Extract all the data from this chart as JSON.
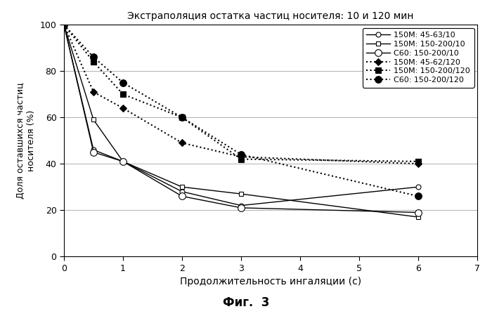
{
  "title": "Экстраполяция остатка частиц носителя: 10 и 120 мин",
  "xlabel": "Продолжительность ингаляции (с)",
  "ylabel": "Доля оставшихся частиц\nносителя (%)",
  "caption": "Фиг.  3",
  "xlim": [
    0,
    7
  ],
  "ylim": [
    0,
    100
  ],
  "xticks": [
    0,
    1,
    2,
    3,
    4,
    5,
    6,
    7
  ],
  "yticks": [
    0,
    20,
    40,
    60,
    80,
    100
  ],
  "series": [
    {
      "label": "150М: 45-63/10",
      "x": [
        0,
        0.5,
        1,
        2,
        3,
        6
      ],
      "y": [
        100,
        46,
        41,
        28,
        22,
        30
      ],
      "linestyle": "-",
      "marker": "o",
      "markerfacecolor": "white",
      "markersize": 5,
      "linewidth": 1.0
    },
    {
      "label": "150М: 150-200/10",
      "x": [
        0,
        0.5,
        1,
        2,
        3,
        6
      ],
      "y": [
        100,
        59,
        41,
        30,
        27,
        17
      ],
      "linestyle": "-",
      "marker": "s",
      "markerfacecolor": "white",
      "markersize": 5,
      "linewidth": 1.0
    },
    {
      "label": "С60: 150-200/10",
      "x": [
        0,
        0.5,
        1,
        2,
        3,
        6
      ],
      "y": [
        100,
        45,
        41,
        26,
        21,
        19
      ],
      "linestyle": "-",
      "marker": "o",
      "markerfacecolor": "white",
      "markersize": 7,
      "linewidth": 1.0
    },
    {
      "label": "150М: 45-62/120",
      "x": [
        0,
        0.5,
        1,
        2,
        3,
        6
      ],
      "y": [
        100,
        71,
        64,
        49,
        43,
        40
      ],
      "linestyle": ":",
      "marker": "D",
      "markerfacecolor": "black",
      "markersize": 5,
      "linewidth": 1.5
    },
    {
      "label": "150М: 150-200/120",
      "x": [
        0,
        0.5,
        1,
        2,
        3,
        6
      ],
      "y": [
        100,
        84,
        70,
        60,
        42,
        41
      ],
      "linestyle": ":",
      "marker": "s",
      "markerfacecolor": "black",
      "markersize": 6,
      "linewidth": 1.5
    },
    {
      "label": "С60: 150-200/120",
      "x": [
        0,
        0.5,
        1,
        2,
        3,
        6
      ],
      "y": [
        100,
        86,
        75,
        60,
        44,
        26
      ],
      "linestyle": ":",
      "marker": "o",
      "markerfacecolor": "black",
      "markersize": 7,
      "linewidth": 1.5
    }
  ],
  "background_color": "#ffffff",
  "grid_color": "#b0b0b0"
}
